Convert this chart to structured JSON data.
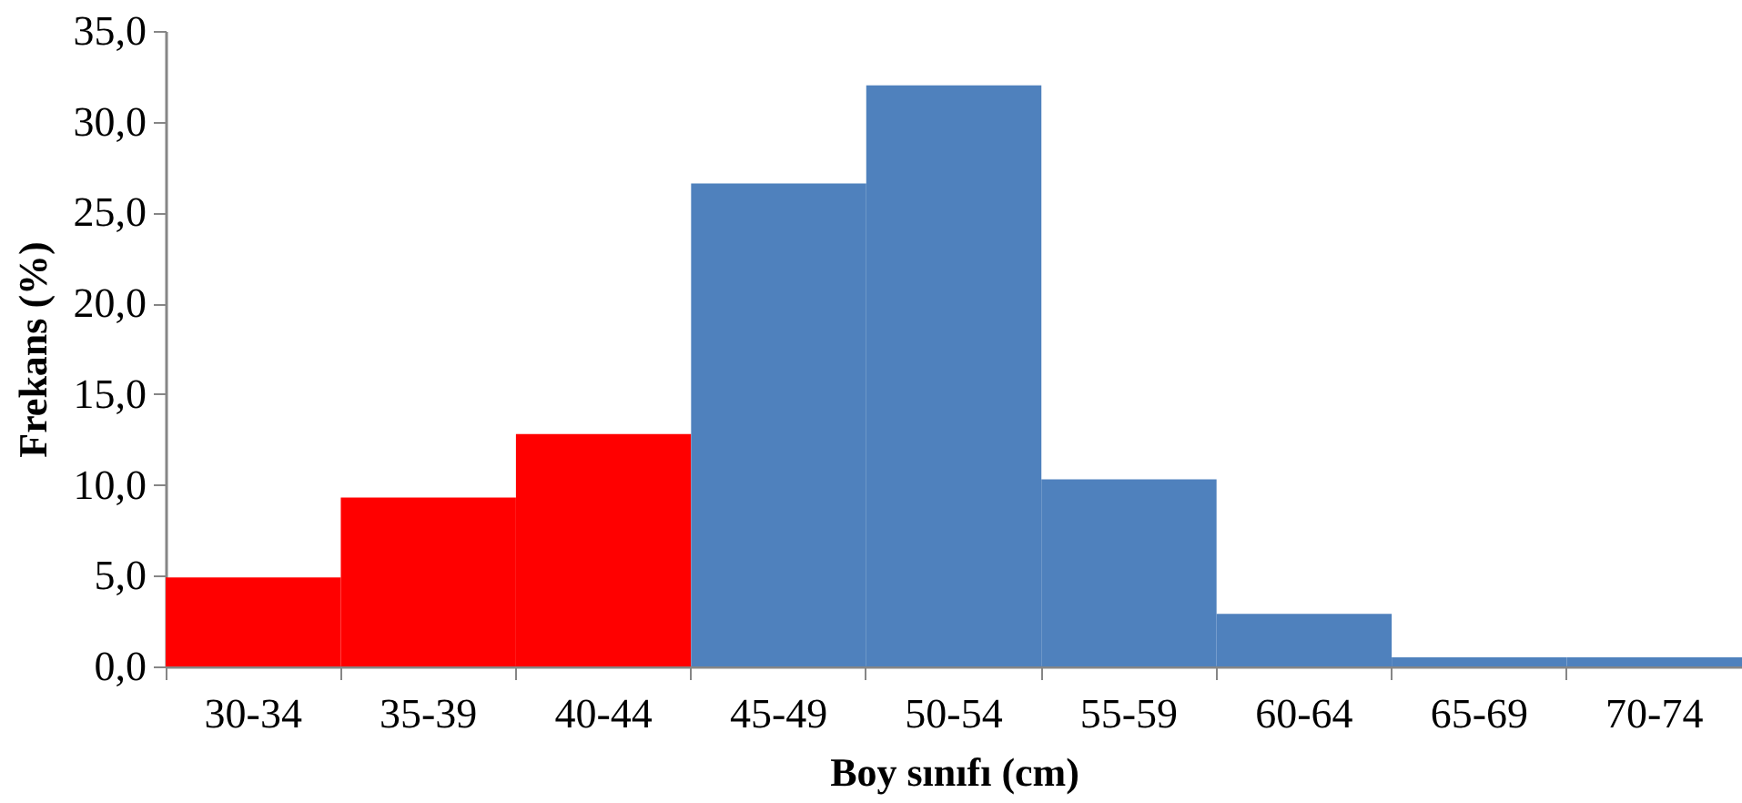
{
  "chart_data": {
    "type": "bar",
    "xlabel": "Boy sınıfı (cm)",
    "ylabel": "Frekans (%)",
    "categories": [
      "30-34",
      "35-39",
      "40-44",
      "45-49",
      "50-54",
      "55-59",
      "60-64",
      "65-69",
      "70-74"
    ],
    "values": [
      4.9,
      9.3,
      12.8,
      26.6,
      32.0,
      10.3,
      2.9,
      0.5,
      0.5
    ],
    "colors": [
      "#ff0000",
      "#ff0000",
      "#ff0000",
      "#4f81bd",
      "#4f81bd",
      "#4f81bd",
      "#4f81bd",
      "#4f81bd",
      "#4f81bd"
    ],
    "ylim": [
      0,
      35
    ],
    "yticks": [
      {
        "value": 0,
        "label": "0,0"
      },
      {
        "value": 5,
        "label": "5,0"
      },
      {
        "value": 10,
        "label": "10,0"
      },
      {
        "value": 15,
        "label": "15,0"
      },
      {
        "value": 20,
        "label": "20,0"
      },
      {
        "value": 25,
        "label": "25,0"
      },
      {
        "value": 30,
        "label": "30,0"
      },
      {
        "value": 35,
        "label": "35,0"
      }
    ],
    "grid": false
  }
}
